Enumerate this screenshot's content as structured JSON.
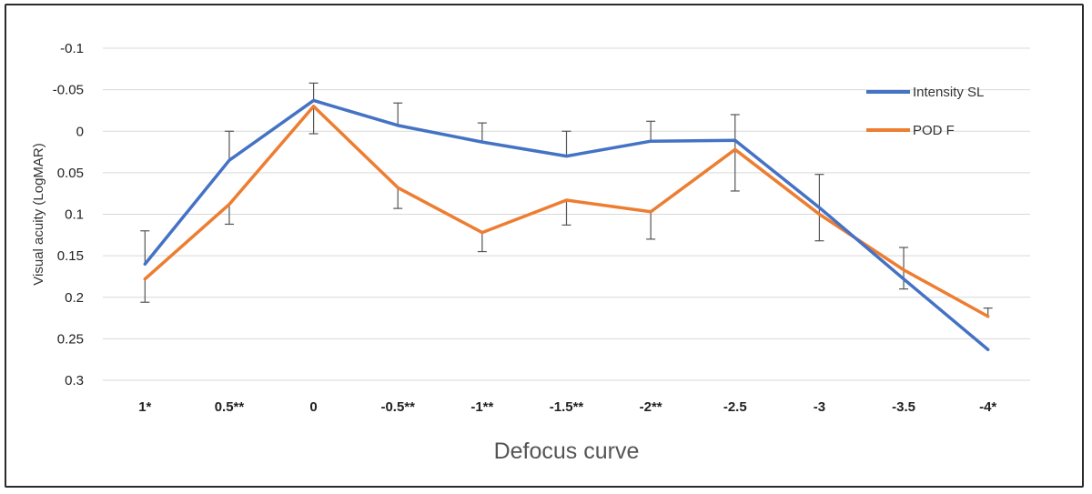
{
  "chart_data": {
    "type": "line",
    "title": "",
    "xlabel": "Defocus curve",
    "ylabel": "Visual acuity (LogMAR)",
    "categories": [
      "1*",
      "0.5**",
      "0",
      "-0.5**",
      "-1**",
      "-1.5**",
      "-2**",
      "-2.5",
      "-3",
      "-3.5",
      "-4*"
    ],
    "ylim": [
      -0.1,
      0.3
    ],
    "y_inverted": true,
    "yticks": [
      "-0.1",
      "-0.05",
      "0",
      "0.05",
      "0.1",
      "0.15",
      "0.2",
      "0.25",
      "0.3"
    ],
    "grid": true,
    "legend_position": "top-right",
    "series": [
      {
        "name": "Intensity SL",
        "color": "#4472C4",
        "values": [
          0.16,
          0.035,
          -0.037,
          -0.007,
          0.013,
          0.03,
          0.012,
          0.011,
          0.092,
          0.178,
          0.263
        ],
        "error_upper": [
          0.12,
          0.0,
          -0.058,
          -0.034,
          -0.01,
          0.0,
          -0.012,
          -0.02,
          0.052,
          0.14,
          null
        ],
        "error_lower": [
          null,
          null,
          null,
          null,
          null,
          null,
          null,
          0.072,
          0.132,
          0.19,
          null
        ]
      },
      {
        "name": "POD F",
        "color": "#ED7D31",
        "values": [
          0.178,
          0.088,
          -0.03,
          0.068,
          0.122,
          0.083,
          0.097,
          0.022,
          0.1,
          0.167,
          0.223
        ],
        "error_upper": [
          null,
          null,
          null,
          null,
          null,
          null,
          null,
          null,
          null,
          null,
          0.213
        ],
        "error_lower": [
          0.206,
          0.112,
          0.003,
          0.093,
          0.145,
          0.113,
          0.13,
          null,
          null,
          null,
          null
        ]
      }
    ]
  }
}
